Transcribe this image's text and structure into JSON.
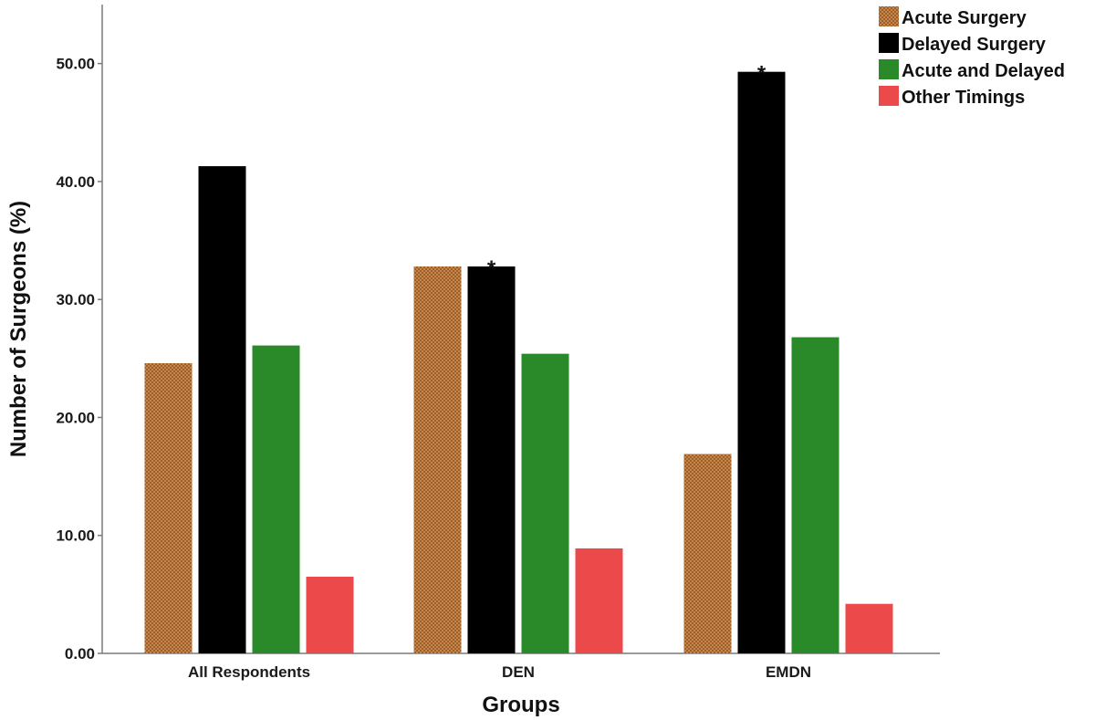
{
  "chart_data": {
    "type": "bar",
    "categories": [
      "All Respondents",
      "DEN",
      "EMDN"
    ],
    "series": [
      {
        "name": "Acute Surgery",
        "values": [
          24.6,
          32.8,
          16.9
        ],
        "color": "#c8874a",
        "pattern": "checkered"
      },
      {
        "name": "Delayed Surgery",
        "values": [
          41.3,
          32.8,
          49.3
        ],
        "color": "#000000"
      },
      {
        "name": "Acute and Delayed",
        "values": [
          26.1,
          25.4,
          26.8
        ],
        "color": "#2a8a2a"
      },
      {
        "name": "Other Timings",
        "values": [
          6.5,
          8.9,
          4.2
        ],
        "color": "#ec4a4a"
      }
    ],
    "xlabel": "Groups",
    "ylabel": "Number of Surgeons (%)",
    "ylim": [
      0,
      55
    ],
    "yticks": [
      "0.00",
      "10.00",
      "20.00",
      "30.00",
      "40.00",
      "50.00"
    ],
    "ytick_values": [
      0,
      10,
      20,
      30,
      40,
      50
    ],
    "grid": false,
    "legend_position": "top-right",
    "annotations": [
      {
        "text": "*",
        "category": "DEN",
        "series": "Delayed Surgery"
      },
      {
        "text": "*",
        "category": "EMDN",
        "series": "Delayed Surgery"
      }
    ]
  }
}
